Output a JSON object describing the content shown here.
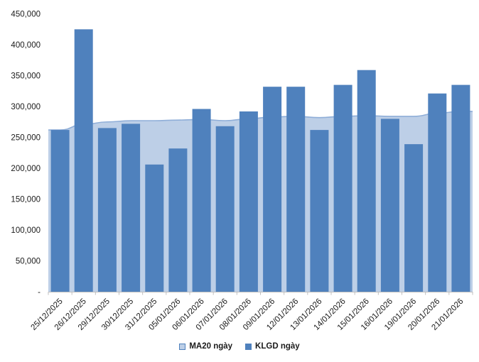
{
  "chart_data": {
    "type": "combo",
    "title": "",
    "xlabel": "",
    "ylabel": "",
    "grid": "off",
    "legend_position": "bottom",
    "categories": [
      "25/12/2025",
      "26/12/2025",
      "29/12/2025",
      "30/12/2025",
      "31/12/2025",
      "05/01/2026",
      "06/01/2026",
      "07/01/2026",
      "08/01/2026",
      "09/01/2026",
      "12/01/2026",
      "13/01/2026",
      "14/01/2026",
      "15/01/2026",
      "16/01/2026",
      "19/01/2026",
      "20/01/2026",
      "21/01/2026"
    ],
    "series": [
      {
        "name": "MA20 ngày",
        "type": "area",
        "fill": "#BDCFE7",
        "line": "#8FAED8",
        "values": [
          262000,
          271000,
          275000,
          277000,
          277000,
          278000,
          279000,
          277000,
          280000,
          283000,
          284000,
          282000,
          284000,
          285000,
          284000,
          284000,
          289000,
          292000
        ]
      },
      {
        "name": "KLGD ngày",
        "type": "bar",
        "fill": "#4F81BD",
        "values": [
          262000,
          425000,
          265000,
          272000,
          206000,
          232000,
          296000,
          268000,
          292000,
          332000,
          332000,
          262000,
          335000,
          359000,
          280000,
          239000,
          321000,
          335000
        ]
      }
    ],
    "ylim": [
      0,
      450000
    ],
    "y_axis": {
      "ticks": [
        {
          "value": 450000,
          "label": "450,000"
        },
        {
          "value": 400000,
          "label": "400,000"
        },
        {
          "value": 350000,
          "label": "350,000"
        },
        {
          "value": 300000,
          "label": "300,000"
        },
        {
          "value": 250000,
          "label": "250,000"
        },
        {
          "value": 200000,
          "label": "200,000"
        },
        {
          "value": 150000,
          "label": "150,000"
        },
        {
          "value": 100000,
          "label": "100,000"
        },
        {
          "value": 50000,
          "label": "50,000"
        },
        {
          "value": 0,
          "label": "-"
        }
      ]
    }
  },
  "colors": {
    "axis": "#BFBFBF",
    "text": "#1a1a1a",
    "background": "#ffffff",
    "bar": "#4F81BD",
    "area_fill": "#BDCFE7",
    "area_line": "#8FAED8"
  },
  "legend": {
    "ma20_label": "MA20 ngày",
    "klgd_label": "KLGD ngày"
  }
}
